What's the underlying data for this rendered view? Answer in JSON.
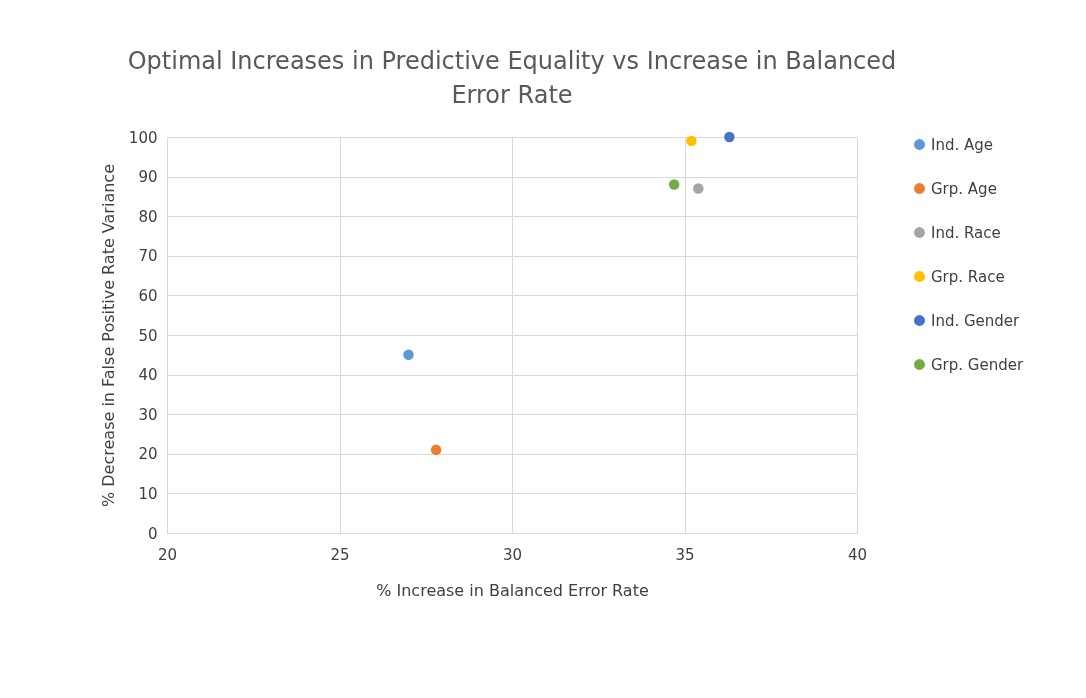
{
  "chart_data": {
    "type": "scatter",
    "title": "Optimal Increases in Predictive Equality vs Increase in Balanced Error Rate",
    "xlabel": "% Increase in Balanced Error Rate",
    "ylabel": "% Decrease in False Positive Rate Variance",
    "xlim": [
      20,
      40
    ],
    "xticks": [
      20,
      25,
      30,
      35,
      40
    ],
    "ylim": [
      0,
      100
    ],
    "yticks": [
      0,
      10,
      20,
      30,
      40,
      50,
      60,
      70,
      80,
      90,
      100
    ],
    "grid": true,
    "legend": "right",
    "marker": "circle",
    "series": [
      {
        "name": "Ind. Age",
        "color": "#5b9bd5",
        "x": [
          27.0
        ],
        "values": [
          45
        ]
      },
      {
        "name": "Grp. Age",
        "color": "#ed7d31",
        "x": [
          27.8
        ],
        "values": [
          21
        ]
      },
      {
        "name": "Ind. Race",
        "color": "#a5a5a5",
        "x": [
          35.4
        ],
        "values": [
          87
        ]
      },
      {
        "name": "Grp. Race",
        "color": "#ffc000",
        "x": [
          35.2
        ],
        "values": [
          99
        ]
      },
      {
        "name": "Ind. Gender",
        "color": "#4472c4",
        "x": [
          36.3
        ],
        "values": [
          100
        ]
      },
      {
        "name": "Grp. Gender",
        "color": "#70ad47",
        "x": [
          34.7
        ],
        "values": [
          88
        ]
      }
    ]
  }
}
